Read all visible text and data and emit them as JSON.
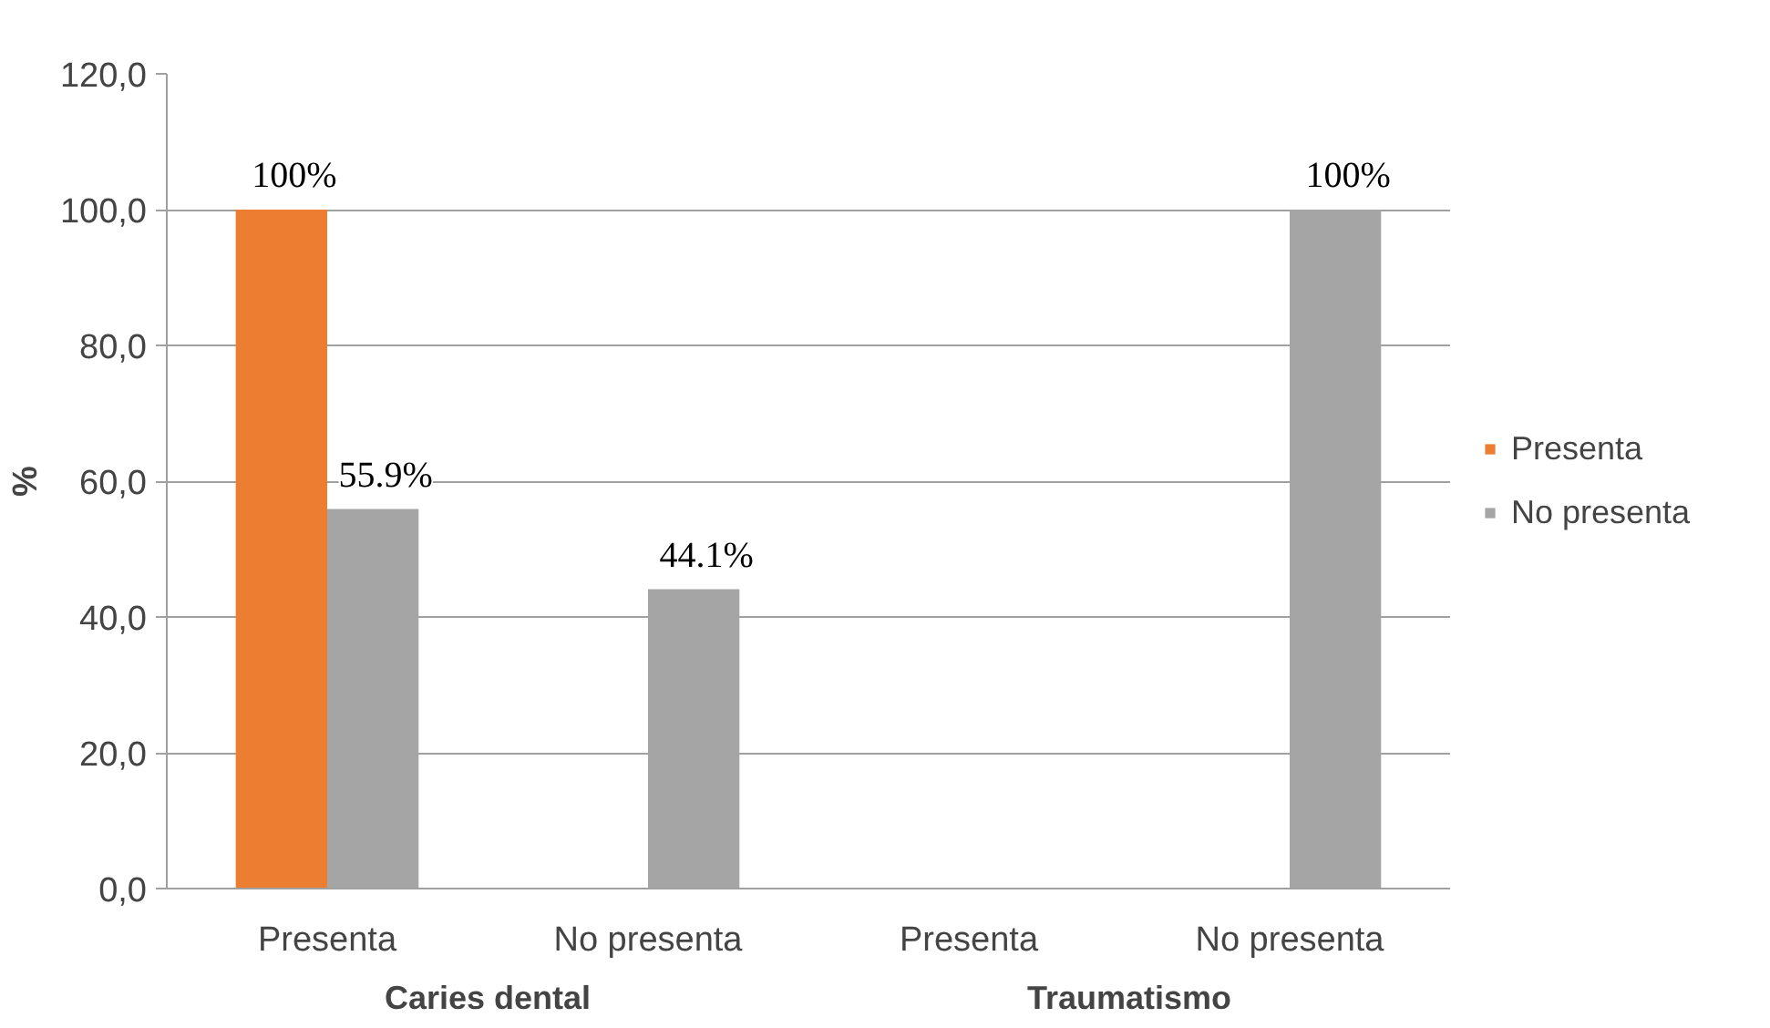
{
  "chart_data": {
    "type": "bar",
    "categories": [
      "Presenta",
      "No presenta",
      "Presenta",
      "No presenta"
    ],
    "series": [
      {
        "name": "Presenta",
        "color": "#ed7d31",
        "values": [
          100,
          null,
          null,
          null
        ],
        "value_labels": [
          "100%",
          null,
          null,
          null
        ]
      },
      {
        "name": "No presenta",
        "color": "#a5a5a5",
        "values": [
          55.9,
          44.1,
          null,
          100
        ],
        "value_labels": [
          "55.9%",
          "44.1%",
          null,
          "100%"
        ]
      }
    ],
    "ylabel": "%",
    "annotations": [
      "Caries dental",
      "Traumatismo"
    ],
    "ylim": [
      0,
      120
    ],
    "yticks": [
      {
        "value": 0,
        "label": "0,0"
      },
      {
        "value": 20,
        "label": "20,0"
      },
      {
        "value": 40,
        "label": "40,0"
      },
      {
        "value": 60,
        "label": "60,0"
      },
      {
        "value": 80,
        "label": "80,0"
      },
      {
        "value": 100,
        "label": "100,0"
      },
      {
        "value": 120,
        "label": "120,0"
      }
    ],
    "grid": "y",
    "legend": "right"
  }
}
